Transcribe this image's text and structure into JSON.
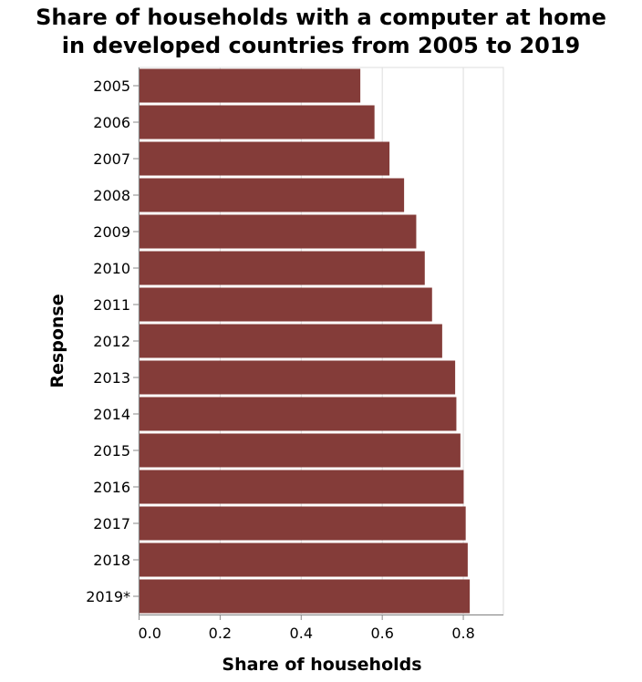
{
  "chart_data": {
    "type": "bar",
    "orientation": "horizontal",
    "title_line1": "Share of households with a computer at home",
    "title_line2": "in developed countries from 2005 to 2019",
    "xlabel": "Share of households",
    "ylabel": "Response",
    "categories": [
      "2005",
      "2006",
      "2007",
      "2008",
      "2009",
      "2010",
      "2011",
      "2012",
      "2013",
      "2014",
      "2015",
      "2016",
      "2017",
      "2018",
      "2019*"
    ],
    "values": [
      0.547,
      0.582,
      0.619,
      0.655,
      0.685,
      0.706,
      0.724,
      0.749,
      0.781,
      0.784,
      0.794,
      0.802,
      0.807,
      0.812,
      0.817
    ],
    "xlim": [
      0,
      0.9
    ],
    "xticks": [
      0,
      0.2,
      0.4,
      0.6,
      0.8
    ],
    "xtick_labels": [
      "0.0",
      "0.2",
      "0.4",
      "0.6",
      "0.8"
    ],
    "grid": true,
    "bar_color": "#843c39"
  }
}
